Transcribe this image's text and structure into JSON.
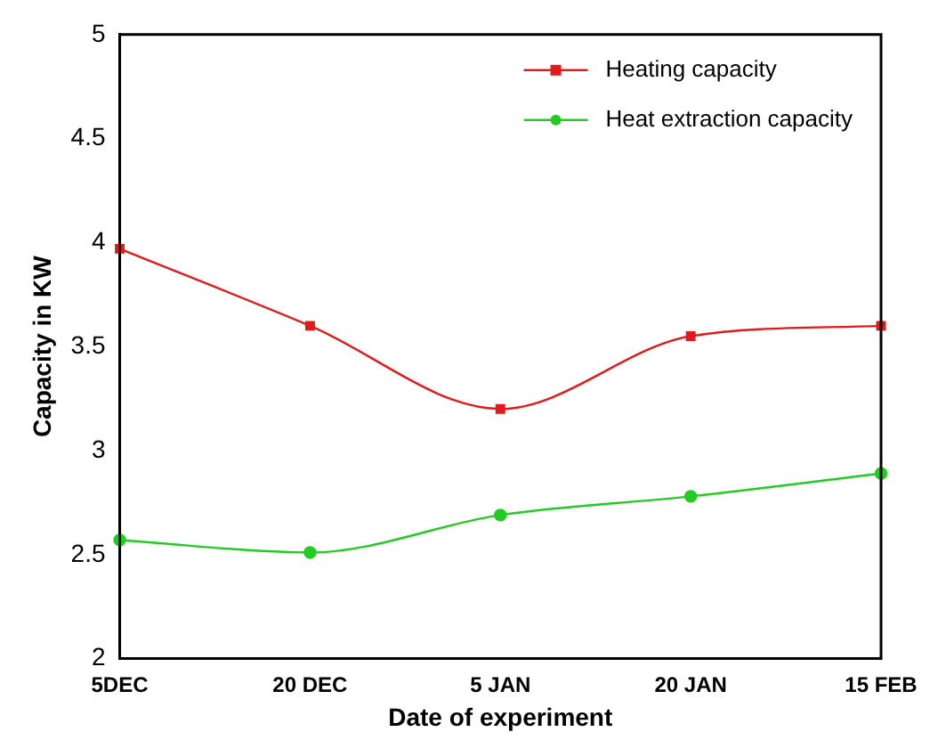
{
  "chart_data": {
    "type": "line",
    "xlabel": "Date of experiment",
    "ylabel": "Capacity in KW",
    "categories": [
      "5DEC",
      "20 DEC",
      "5 JAN",
      "20 JAN",
      "15 FEB"
    ],
    "series": [
      {
        "name": "Heating capacity",
        "color": "#e31a1c",
        "values": [
          3.97,
          3.6,
          3.2,
          3.55,
          3.6
        ],
        "marker": "square"
      },
      {
        "name": "Heat extraction capacity",
        "color": "#22cc22",
        "values": [
          2.57,
          2.51,
          2.69,
          2.78,
          2.89
        ],
        "marker": "circle"
      }
    ],
    "ylim": [
      2,
      5
    ],
    "yticks": [
      2,
      2.5,
      3,
      3.5,
      4,
      4.5,
      5
    ],
    "grid": false,
    "legend": "top right",
    "line_style": "solid"
  }
}
